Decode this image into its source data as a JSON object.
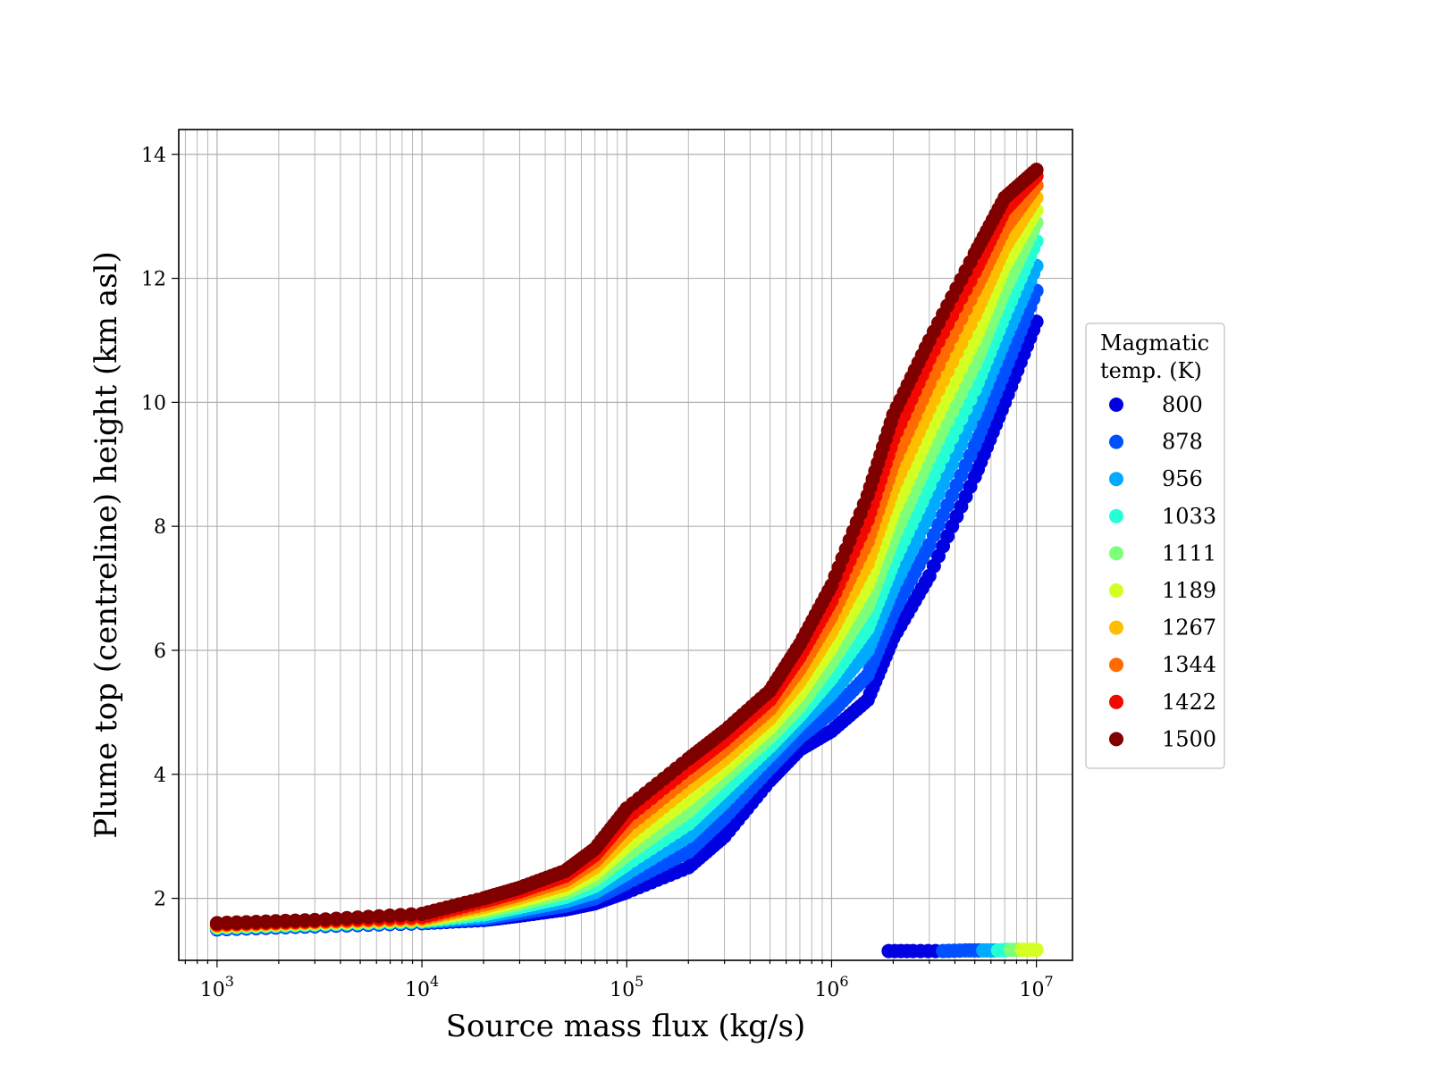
{
  "chart_data": {
    "type": "scatter",
    "title": "",
    "xlabel": "Source mass flux (kg/s)",
    "ylabel": "Plume top (centreline) height (km asl)",
    "xscale": "log",
    "xlim": [
      650,
      15000000
    ],
    "ylim": [
      1.0,
      14.4
    ],
    "x_ticks": [
      {
        "value": 1000,
        "base": "10",
        "exp": "3"
      },
      {
        "value": 10000,
        "base": "10",
        "exp": "4"
      },
      {
        "value": 100000,
        "base": "10",
        "exp": "5"
      },
      {
        "value": 1000000,
        "base": "10",
        "exp": "6"
      },
      {
        "value": 10000000,
        "base": "10",
        "exp": "7"
      }
    ],
    "y_ticks": [
      2,
      4,
      6,
      8,
      10,
      12,
      14
    ],
    "grid": true,
    "legend": {
      "title_lines": [
        "Magmatic",
        "temp. (K)"
      ],
      "placement": "outside-right"
    },
    "x": [
      1000,
      3000,
      10000,
      20000,
      30000,
      50000,
      70000,
      100000,
      200000,
      300000,
      500000,
      700000,
      1000000,
      1500000,
      2000000,
      3000000,
      5000000,
      7000000,
      10000000
    ],
    "series": [
      {
        "name": "800",
        "color": "#0000e0",
        "values": [
          1.5,
          1.55,
          1.6,
          1.65,
          1.72,
          1.82,
          1.92,
          2.1,
          2.5,
          3.0,
          3.9,
          4.4,
          4.7,
          5.2,
          6.2,
          7.2,
          8.8,
          10.0,
          11.3
        ]
      },
      {
        "name": "878",
        "color": "#0050ff",
        "values": [
          1.51,
          1.56,
          1.61,
          1.67,
          1.76,
          1.88,
          2.0,
          2.25,
          2.75,
          3.3,
          4.1,
          4.6,
          5.0,
          5.6,
          6.6,
          7.7,
          9.3,
          10.5,
          11.8
        ]
      },
      {
        "name": "956",
        "color": "#00aaff",
        "values": [
          1.52,
          1.57,
          1.62,
          1.7,
          1.81,
          1.95,
          2.1,
          2.4,
          3.0,
          3.55,
          4.3,
          4.8,
          5.3,
          6.0,
          7.0,
          8.2,
          9.8,
          11.0,
          12.2
        ]
      },
      {
        "name": "1033",
        "color": "#26ffd5",
        "values": [
          1.53,
          1.58,
          1.63,
          1.74,
          1.86,
          2.02,
          2.2,
          2.55,
          3.2,
          3.75,
          4.45,
          4.95,
          5.55,
          6.35,
          7.4,
          8.65,
          10.2,
          11.4,
          12.6
        ]
      },
      {
        "name": "1111",
        "color": "#7dff7a",
        "values": [
          1.54,
          1.59,
          1.64,
          1.78,
          1.91,
          2.09,
          2.3,
          2.7,
          3.4,
          3.95,
          4.6,
          5.1,
          5.8,
          6.7,
          7.8,
          9.1,
          10.6,
          11.8,
          12.9
        ]
      },
      {
        "name": "1189",
        "color": "#d4ff23",
        "values": [
          1.55,
          1.6,
          1.65,
          1.82,
          1.96,
          2.15,
          2.4,
          2.85,
          3.6,
          4.1,
          4.75,
          5.3,
          6.05,
          7.05,
          8.2,
          9.5,
          11.0,
          12.2,
          13.1
        ]
      },
      {
        "name": "1267",
        "color": "#ffbd00",
        "values": [
          1.56,
          1.61,
          1.66,
          1.86,
          2.01,
          2.22,
          2.5,
          3.0,
          3.8,
          4.25,
          4.9,
          5.5,
          6.3,
          7.4,
          8.6,
          9.9,
          11.4,
          12.5,
          13.3
        ]
      },
      {
        "name": "1344",
        "color": "#ff6b00",
        "values": [
          1.57,
          1.62,
          1.68,
          1.9,
          2.06,
          2.29,
          2.6,
          3.15,
          3.95,
          4.4,
          5.05,
          5.7,
          6.55,
          7.75,
          9.0,
          10.3,
          11.8,
          12.8,
          13.5
        ]
      },
      {
        "name": "1422",
        "color": "#f10800",
        "values": [
          1.58,
          1.63,
          1.7,
          1.95,
          2.11,
          2.36,
          2.7,
          3.3,
          4.1,
          4.55,
          5.2,
          5.9,
          6.8,
          8.1,
          9.4,
          10.7,
          12.1,
          13.1,
          13.65
        ]
      },
      {
        "name": "1500",
        "color": "#800000",
        "values": [
          1.6,
          1.65,
          1.75,
          2.0,
          2.17,
          2.44,
          2.8,
          3.45,
          4.25,
          4.7,
          5.35,
          6.1,
          7.05,
          8.5,
          9.8,
          11.0,
          12.4,
          13.3,
          13.75
        ]
      }
    ],
    "lower_branch": {
      "x": [
        1900000,
        2500000,
        3500000,
        4500000,
        5500000,
        6500000,
        7500000,
        8500000,
        10000000
      ],
      "y": [
        1.15,
        1.15,
        1.15,
        1.16,
        1.16,
        1.16,
        1.17,
        1.17,
        1.17
      ],
      "colors": [
        "#0000e0",
        "#0000e0",
        "#0050ff",
        "#0050ff",
        "#00aaff",
        "#26ffd5",
        "#7dff7a",
        "#d4ff23",
        "#d4ff23"
      ]
    }
  }
}
